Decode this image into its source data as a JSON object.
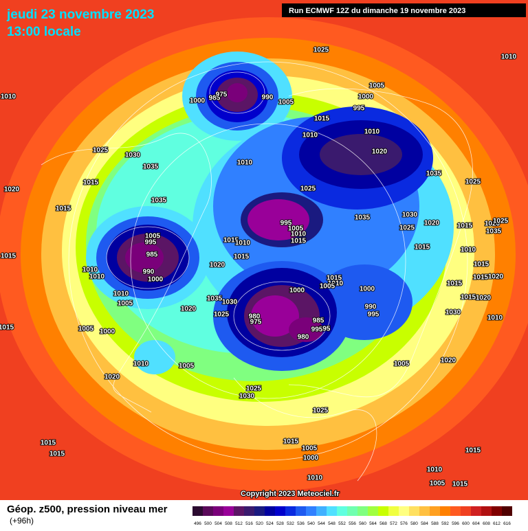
{
  "header": {
    "date": "jeudi 23 novembre 2023",
    "time": "13:00 locale",
    "run": "Run ECMWF 12Z du dimanche 19 novembre 2023"
  },
  "footer": {
    "product": "Géop. z500, pression niveau mer",
    "lead": "(+96h)",
    "copyright": "Copyright 2023 Meteociel.fr"
  },
  "color_scale": {
    "labels": [
      496,
      500,
      504,
      508,
      512,
      516,
      520,
      524,
      528,
      532,
      536,
      540,
      544,
      548,
      552,
      556,
      560,
      564,
      568,
      572,
      576,
      580,
      584,
      588,
      592,
      596,
      600,
      604,
      608,
      612,
      616
    ],
    "colors": [
      "#2b0b30",
      "#5a0a5a",
      "#7a007a",
      "#990099",
      "#5b1565",
      "#3a1a6e",
      "#1a1a80",
      "#0000a0",
      "#0000cc",
      "#0a2ae0",
      "#1e5af0",
      "#3080ff",
      "#40b0ff",
      "#50e0ff",
      "#60ffe0",
      "#70ffb0",
      "#80ff80",
      "#a0ff40",
      "#c8ff00",
      "#f0ff40",
      "#ffff80",
      "#ffe060",
      "#ffc040",
      "#ffa020",
      "#ff8000",
      "#ff5a20",
      "#f04020",
      "#d02020",
      "#b01010",
      "#800000",
      "#500000"
    ]
  },
  "isobar_labels": [
    "1025",
    "1010",
    "1010",
    "1005",
    "1000",
    "985",
    "975",
    "990",
    "1005",
    "1000",
    "995",
    "1015",
    "1010",
    "1010",
    "1020",
    "1025",
    "1030",
    "1035",
    "1010",
    "1015",
    "1035",
    "1020",
    "1015",
    "1035",
    "1025",
    "1025",
    "995",
    "1035",
    "1030",
    "1025",
    "1020",
    "1015",
    "1020",
    "1035",
    "1025",
    "1005",
    "995",
    "985",
    "990",
    "1000",
    "1010",
    "1010",
    "1015",
    "1010",
    "1015",
    "1010",
    "1015",
    "1005",
    "1020",
    "1015",
    "1010",
    "1015",
    "1010",
    "1015",
    "1015",
    "1020",
    "1015",
    "1015",
    "1020",
    "1010",
    "1030",
    "1015",
    "1010",
    "1005",
    "1000",
    "1005",
    "1000",
    "990",
    "995",
    "1035",
    "1030",
    "1025",
    "1020",
    "980",
    "975",
    "985",
    "995",
    "995",
    "980",
    "1000",
    "1005",
    "1015",
    "1010",
    "1005",
    "1005",
    "1020",
    "1020",
    "1025",
    "1030",
    "1025",
    "1015",
    "1005",
    "1000",
    "1010",
    "1015",
    "1015",
    "1015",
    "1010",
    "1005",
    "1015"
  ]
}
